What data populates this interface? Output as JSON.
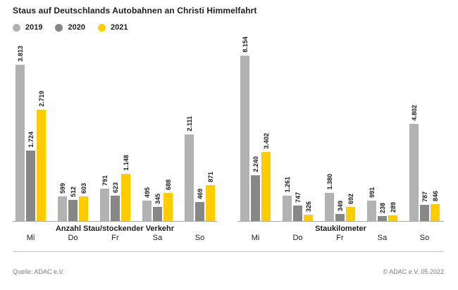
{
  "header": {
    "title": "Staus auf Deutschlands Autobahnen an Christi Himmelfahrt"
  },
  "legend": {
    "items": [
      {
        "label": "2019",
        "color": "#b2b2b2"
      },
      {
        "label": "2020",
        "color": "#878787"
      },
      {
        "label": "2021",
        "color": "#ffcc00"
      }
    ]
  },
  "chart_data": [
    {
      "type": "bar",
      "title": "Anzahl Stau/stockender Verkehr",
      "categories": [
        "Mi",
        "Do",
        "Fr",
        "Sa",
        "So"
      ],
      "series": [
        {
          "name": "2019",
          "color": "#b2b2b2",
          "values": [
            3813,
            599,
            791,
            495,
            2111
          ]
        },
        {
          "name": "2020",
          "color": "#878787",
          "values": [
            1724,
            512,
            623,
            345,
            469
          ]
        },
        {
          "name": "2021",
          "color": "#ffcc00",
          "values": [
            2719,
            603,
            1148,
            688,
            871
          ]
        }
      ],
      "value_label_format": "de-thousands-dot",
      "legend_position": "top-left",
      "grid": false
    },
    {
      "type": "bar",
      "title": "Staukilometer",
      "categories": [
        "Mi",
        "Do",
        "Fr",
        "Sa",
        "So"
      ],
      "series": [
        {
          "name": "2019",
          "color": "#b2b2b2",
          "values": [
            8154,
            1261,
            1380,
            991,
            4802
          ]
        },
        {
          "name": "2020",
          "color": "#878787",
          "values": [
            2240,
            747,
            349,
            238,
            787
          ]
        },
        {
          "name": "2021",
          "color": "#ffcc00",
          "values": [
            3402,
            326,
            692,
            289,
            846
          ]
        }
      ],
      "value_label_format": "de-thousands-dot",
      "legend_position": "top-left",
      "grid": false
    }
  ],
  "footer": {
    "source": "Quelle: ADAC e.V.",
    "copyright": "© ADAC e.V. 05.2022"
  },
  "colors": {
    "axis_line": "#a8a8a8",
    "text_dark": "#1d1d1b",
    "text_muted": "#7d7d7d",
    "separator": "#c6c6c6"
  }
}
